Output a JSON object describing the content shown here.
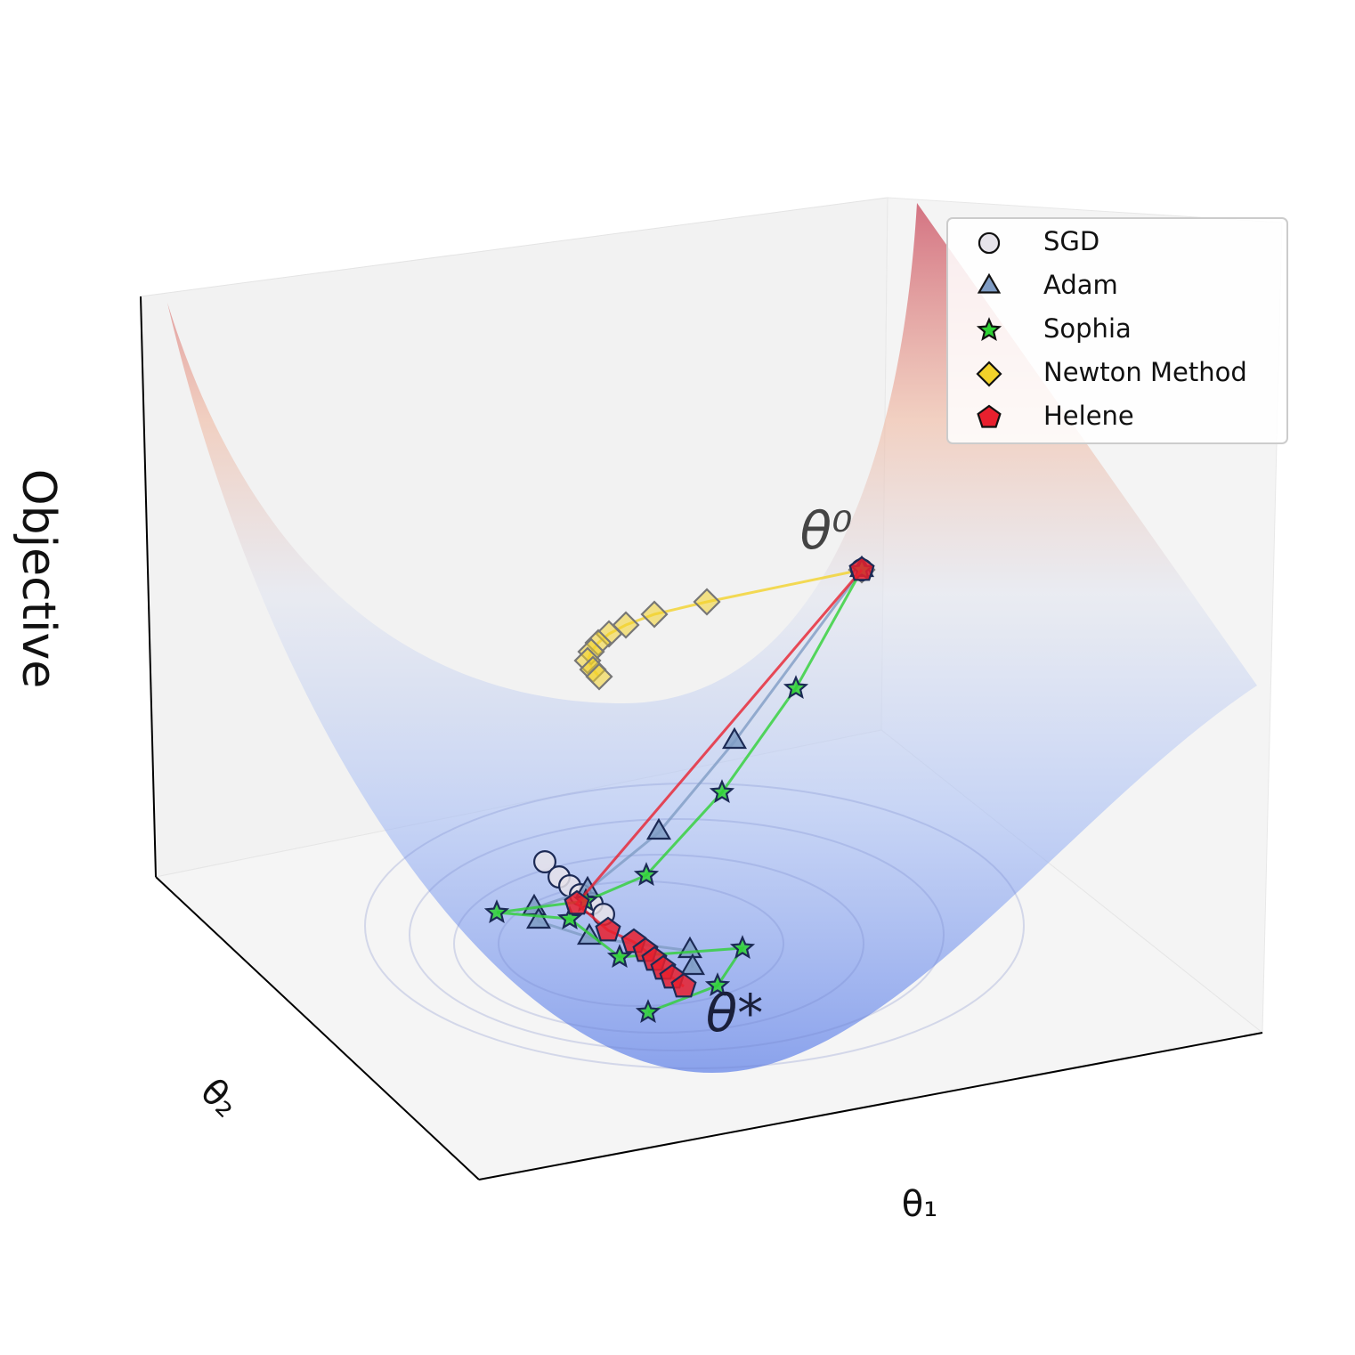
{
  "chart_data": {
    "type": "surface3d",
    "xlabel": "θ₁",
    "ylabel": "θ₂",
    "zlabel": "Objective",
    "annotations": [
      "θ⁰",
      "θ*"
    ],
    "legend": "upper right",
    "series": [
      {
        "name": "SGD",
        "color": "#e6e3ea",
        "marker": "circle"
      },
      {
        "name": "Adam",
        "color": "#7f9cc4",
        "marker": "triangle"
      },
      {
        "name": "Sophia",
        "color": "#2ed134",
        "marker": "star"
      },
      {
        "name": "Newton Method",
        "color": "#f2d22a",
        "marker": "diamond"
      },
      {
        "name": "Helene",
        "color": "#e8202e",
        "marker": "pentagon"
      }
    ]
  }
}
